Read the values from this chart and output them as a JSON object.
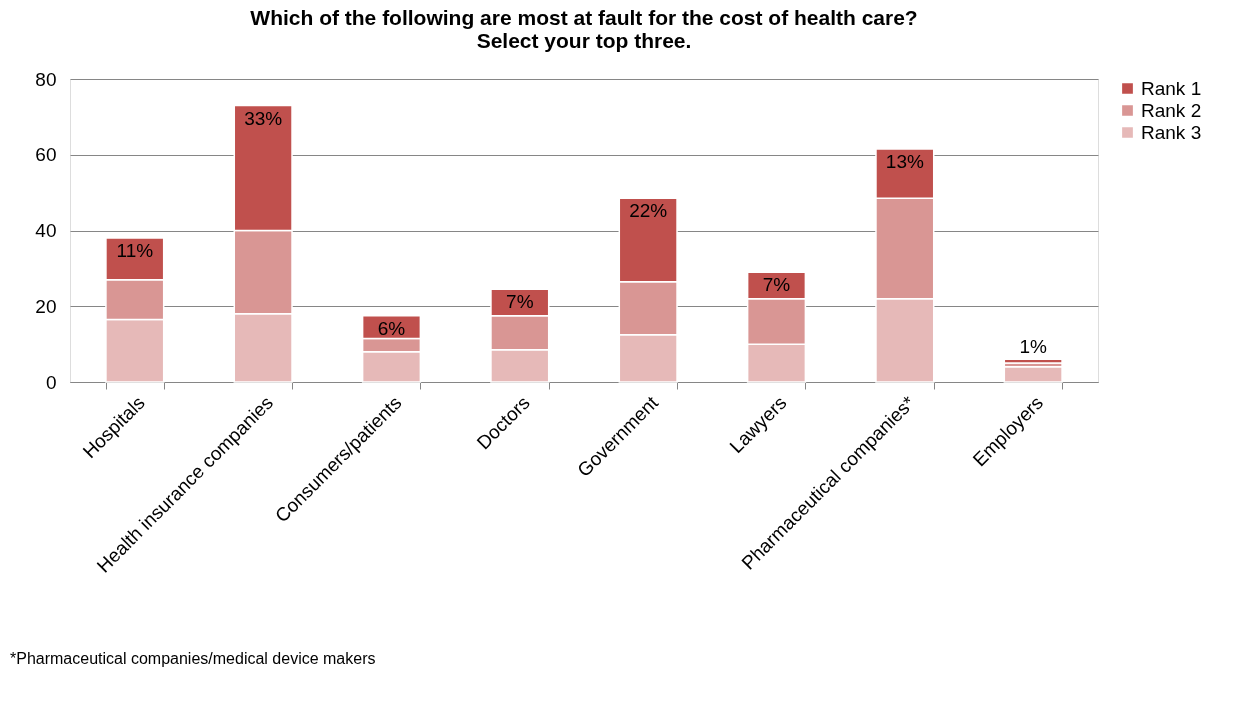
{
  "chart_data": {
    "type": "bar",
    "stacked": true,
    "title": [
      "Which of the following are most at fault for the cost of health care?",
      "Select your top three."
    ],
    "categories": [
      "Hospitals",
      "Health insurance companies",
      "Consumers/patients",
      "Doctors",
      "Government",
      "Lawyers",
      "Pharmaceutical companies*",
      "Employers"
    ],
    "series": [
      {
        "name": "Rank 3",
        "color": "#e6b9b8",
        "values": [
          16.5,
          18,
          8,
          8.5,
          12.5,
          10,
          22,
          4
        ]
      },
      {
        "name": "Rank 2",
        "color": "#d99694",
        "values": [
          10.5,
          22,
          3.5,
          9,
          14,
          12,
          26.5,
          1
        ]
      },
      {
        "name": "Rank 1",
        "color": "#c0504d",
        "values": [
          11,
          33,
          6,
          7,
          22,
          7,
          13,
          1
        ],
        "value_labels": [
          "11%",
          "33%",
          "6%",
          "7%",
          "22%",
          "7%",
          "13%",
          "1%"
        ]
      }
    ],
    "ylim": [
      0,
      80
    ],
    "yticks": [
      0,
      20,
      40,
      60,
      80
    ],
    "grid": "y",
    "legend": "right",
    "annotations": [
      "*Pharmaceutical companies/medical device makers"
    ]
  }
}
